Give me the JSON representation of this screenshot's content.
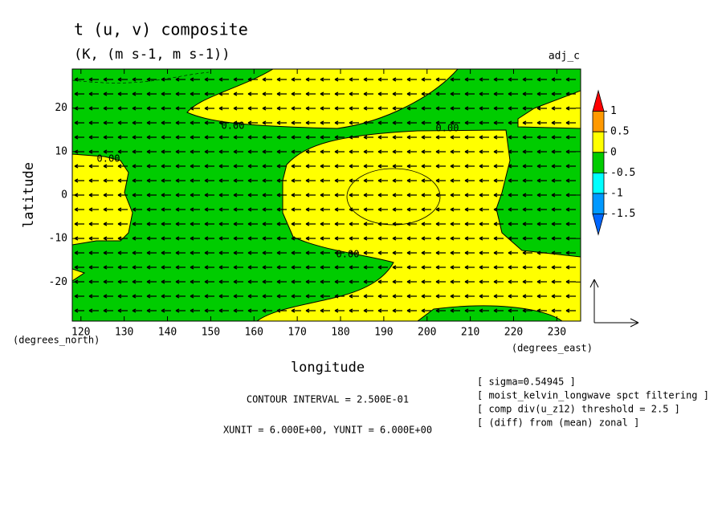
{
  "chart_data": {
    "type": "contour",
    "title": "t (u, v) composite",
    "subtitle": "(K, (m s-1, m s-1))",
    "tag": "adj_c",
    "xlabel": "longitude",
    "ylabel": "latitude",
    "x_unit_label": "(degrees_east)",
    "y_unit_label": "(degrees_north)",
    "xlim": [
      118,
      235.5
    ],
    "ylim": [
      -29,
      29
    ],
    "xticks": [
      120,
      130,
      140,
      150,
      160,
      170,
      180,
      190,
      200,
      210,
      220,
      230
    ],
    "yticks": [
      -20,
      -10,
      0,
      10,
      20
    ],
    "contour_labels": [
      "0.00",
      "0.00",
      "0.00",
      "0.00"
    ],
    "colorbar": {
      "colors": [
        "#ff0000",
        "#ff9900",
        "#ffff00",
        "#00cc00",
        "#00ffff",
        "#0099ff",
        "#0066ff"
      ],
      "ticks": [
        1,
        0.5,
        0,
        -0.5,
        -1,
        -1.5
      ]
    },
    "contour_interval": "CONTOUR INTERVAL = 2.500E-01",
    "units_note": "XUNIT = 6.000E+00, YUNIT = 6.000E+00",
    "notes": [
      "[ sigma=0.54945 ]",
      "[ moist_kelvin_longwave spct filtering ]",
      "[ comp div(u_z12) threshold = 2.5 ]",
      "[ (diff) from (mean) zonal ]"
    ]
  }
}
